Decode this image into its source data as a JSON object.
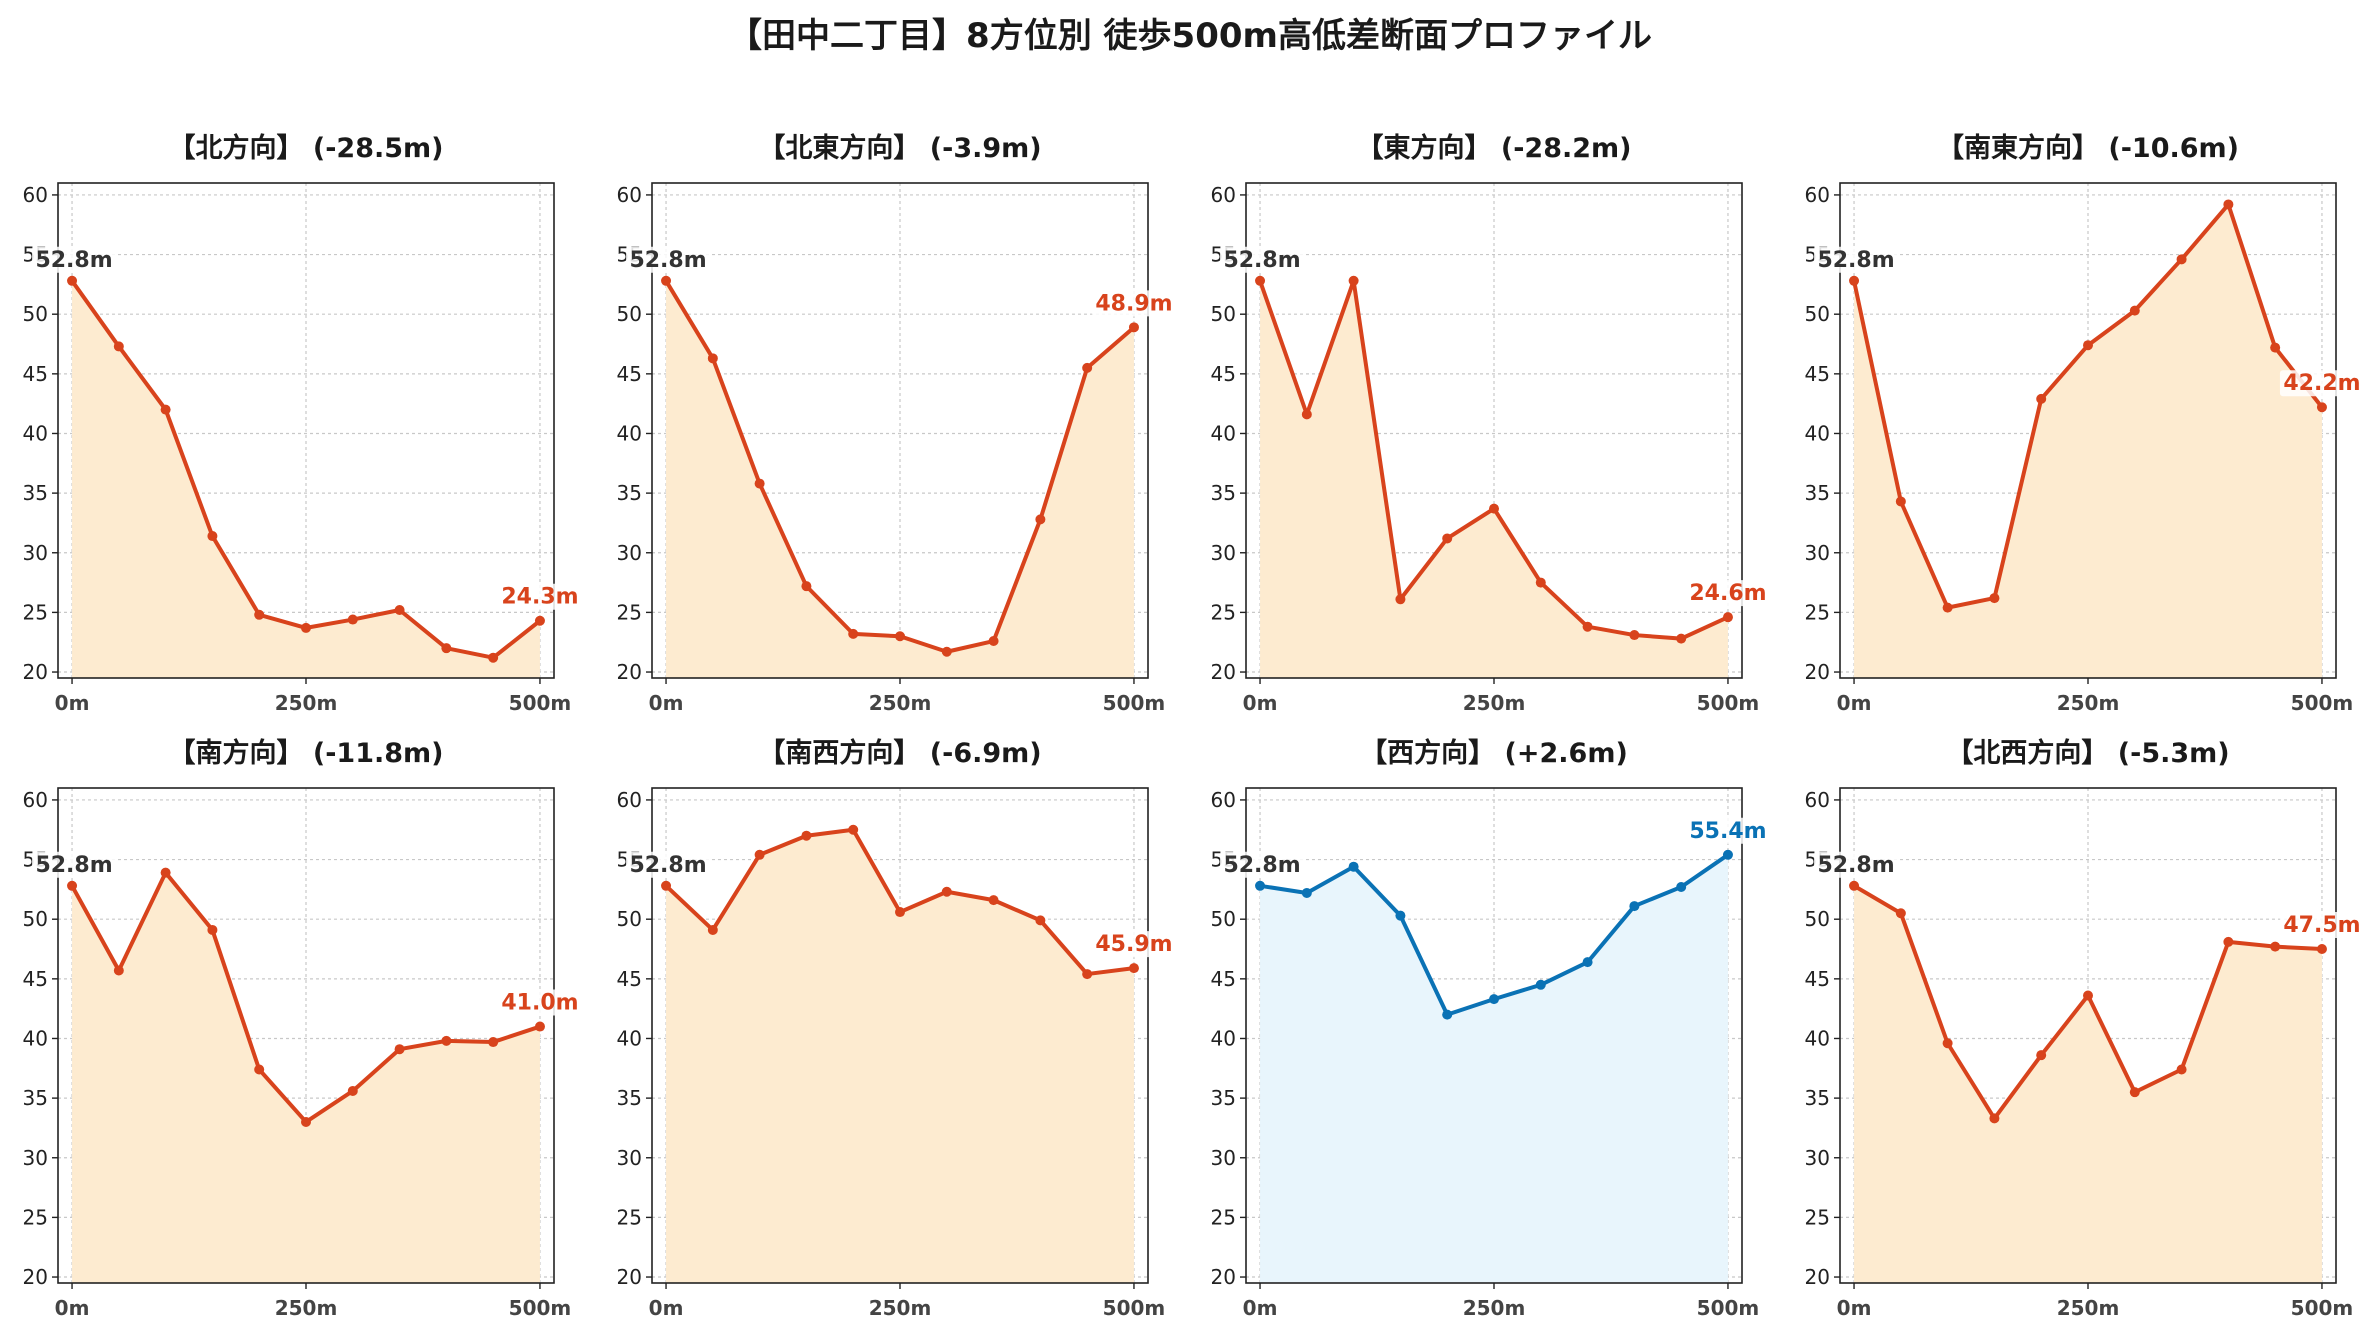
{
  "title": "【田中二丁目】8方位別 徒歩500m高低差断面プロファイル",
  "colors": {
    "down_line": "#d8431c",
    "down_fill": "#fdebd0",
    "up_line": "#0a72b5",
    "up_fill": "#e8f5fc",
    "start_label": "#333333",
    "grid": "#c8c8c8"
  },
  "chart_data": [
    {
      "type": "line",
      "title": "【北方向】 (-28.5m)",
      "x": [
        0,
        50,
        100,
        150,
        200,
        250,
        300,
        350,
        400,
        450,
        500
      ],
      "values": [
        52.8,
        47.3,
        42.0,
        31.4,
        24.8,
        23.7,
        24.4,
        25.2,
        22.0,
        21.2,
        24.3
      ],
      "start_label": "52.8m",
      "end_label": "24.3m",
      "trend": "down",
      "xticks": [
        "0m",
        "250m",
        "500m"
      ],
      "yticks": [
        20,
        25,
        30,
        35,
        40,
        45,
        50,
        55,
        60
      ],
      "ylim": [
        19.5,
        61
      ],
      "grid": true
    },
    {
      "type": "line",
      "title": "【北東方向】 (-3.9m)",
      "x": [
        0,
        50,
        100,
        150,
        200,
        250,
        300,
        350,
        400,
        450,
        500
      ],
      "values": [
        52.8,
        46.3,
        35.8,
        27.2,
        23.2,
        23.0,
        21.7,
        22.6,
        32.8,
        45.5,
        48.9
      ],
      "start_label": "52.8m",
      "end_label": "48.9m",
      "trend": "down",
      "xticks": [
        "0m",
        "250m",
        "500m"
      ],
      "yticks": [
        20,
        25,
        30,
        35,
        40,
        45,
        50,
        55,
        60
      ],
      "ylim": [
        19.5,
        61
      ],
      "grid": true
    },
    {
      "type": "line",
      "title": "【東方向】 (-28.2m)",
      "x": [
        0,
        50,
        100,
        150,
        200,
        250,
        300,
        350,
        400,
        450,
        500
      ],
      "values": [
        52.8,
        41.6,
        52.8,
        26.1,
        31.2,
        33.7,
        27.5,
        23.8,
        23.1,
        22.8,
        24.6
      ],
      "start_label": "52.8m",
      "end_label": "24.6m",
      "trend": "down",
      "xticks": [
        "0m",
        "250m",
        "500m"
      ],
      "yticks": [
        20,
        25,
        30,
        35,
        40,
        45,
        50,
        55,
        60
      ],
      "ylim": [
        19.5,
        61
      ],
      "grid": true
    },
    {
      "type": "line",
      "title": "【南東方向】 (-10.6m)",
      "x": [
        0,
        50,
        100,
        150,
        200,
        250,
        300,
        350,
        400,
        450,
        500
      ],
      "values": [
        52.8,
        34.3,
        25.4,
        26.2,
        42.9,
        47.4,
        50.3,
        54.6,
        59.2,
        47.2,
        42.2
      ],
      "start_label": "52.8m",
      "end_label": "42.2m",
      "trend": "down",
      "xticks": [
        "0m",
        "250m",
        "500m"
      ],
      "yticks": [
        20,
        25,
        30,
        35,
        40,
        45,
        50,
        55,
        60
      ],
      "ylim": [
        19.5,
        61
      ],
      "grid": true
    },
    {
      "type": "line",
      "title": "【南方向】 (-11.8m)",
      "x": [
        0,
        50,
        100,
        150,
        200,
        250,
        300,
        350,
        400,
        450,
        500
      ],
      "values": [
        52.8,
        45.7,
        53.9,
        49.1,
        37.4,
        33.0,
        35.6,
        39.1,
        39.8,
        39.7,
        41.0
      ],
      "start_label": "52.8m",
      "end_label": "41.0m",
      "trend": "down",
      "xticks": [
        "0m",
        "250m",
        "500m"
      ],
      "yticks": [
        20,
        25,
        30,
        35,
        40,
        45,
        50,
        55,
        60
      ],
      "ylim": [
        19.5,
        61
      ],
      "grid": true
    },
    {
      "type": "line",
      "title": "【南西方向】 (-6.9m)",
      "x": [
        0,
        50,
        100,
        150,
        200,
        250,
        300,
        350,
        400,
        450,
        500
      ],
      "values": [
        52.8,
        49.1,
        55.4,
        57.0,
        57.5,
        50.6,
        52.3,
        51.6,
        49.9,
        45.4,
        45.9
      ],
      "start_label": "52.8m",
      "end_label": "45.9m",
      "trend": "down",
      "xticks": [
        "0m",
        "250m",
        "500m"
      ],
      "yticks": [
        20,
        25,
        30,
        35,
        40,
        45,
        50,
        55,
        60
      ],
      "ylim": [
        19.5,
        61
      ],
      "grid": true
    },
    {
      "type": "line",
      "title": "【西方向】 (+2.6m)",
      "x": [
        0,
        50,
        100,
        150,
        200,
        250,
        300,
        350,
        400,
        450,
        500
      ],
      "values": [
        52.8,
        52.2,
        54.4,
        50.3,
        42.0,
        43.3,
        44.5,
        46.4,
        51.1,
        52.7,
        55.4
      ],
      "start_label": "52.8m",
      "end_label": "55.4m",
      "trend": "up",
      "xticks": [
        "0m",
        "250m",
        "500m"
      ],
      "yticks": [
        20,
        25,
        30,
        35,
        40,
        45,
        50,
        55,
        60
      ],
      "ylim": [
        19.5,
        61
      ],
      "grid": true
    },
    {
      "type": "line",
      "title": "【北西方向】 (-5.3m)",
      "x": [
        0,
        50,
        100,
        150,
        200,
        250,
        300,
        350,
        400,
        450,
        500
      ],
      "values": [
        52.8,
        50.5,
        39.6,
        33.3,
        38.6,
        43.6,
        35.5,
        37.4,
        48.1,
        47.7,
        47.5
      ],
      "start_label": "52.8m",
      "end_label": "47.5m",
      "trend": "down",
      "xticks": [
        "0m",
        "250m",
        "500m"
      ],
      "yticks": [
        20,
        25,
        30,
        35,
        40,
        45,
        50,
        55,
        60
      ],
      "ylim": [
        19.5,
        61
      ],
      "grid": true
    }
  ]
}
